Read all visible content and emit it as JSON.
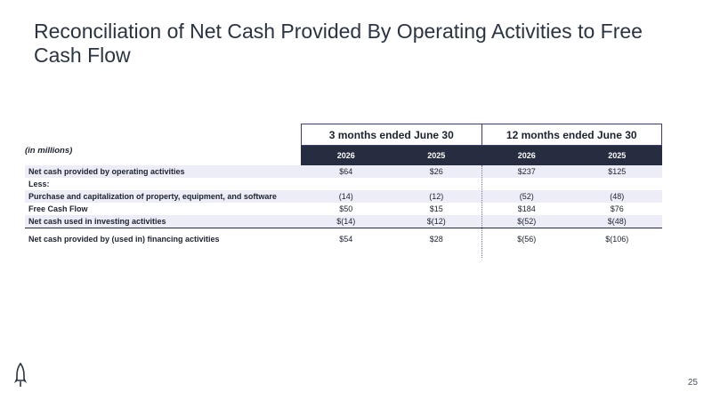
{
  "title": "Reconciliation of Net Cash Provided By Operating Activities to Free Cash Flow",
  "table": {
    "units": "(in millions)",
    "periods": [
      "3 months ended June 30",
      "12 months ended June 30"
    ],
    "years": [
      "2026",
      "2025",
      "2026",
      "2025"
    ],
    "rows": [
      {
        "label": "Net cash provided by operating activities",
        "values": [
          "$64",
          "$26",
          "$237",
          "$125"
        ]
      },
      {
        "label": "Less:",
        "values": [
          "",
          "",
          "",
          ""
        ]
      },
      {
        "label": "Purchase and capitalization of property, equipment, and software",
        "values": [
          "(14)",
          "(12)",
          "(52)",
          "(48)"
        ]
      },
      {
        "label": "Free Cash Flow",
        "values": [
          "$50",
          "$15",
          "$184",
          "$76"
        ]
      },
      {
        "label": "Net cash used in investing activities",
        "values": [
          "$(14)",
          "$(12)",
          "$(52)",
          "$(48)"
        ]
      },
      {
        "label": "Net cash provided by (used in) financing activities",
        "values": [
          "$54",
          "$28",
          "$(56)",
          "$(106)"
        ]
      }
    ]
  },
  "page_number": "25",
  "logo_icon": "rocket-icon"
}
